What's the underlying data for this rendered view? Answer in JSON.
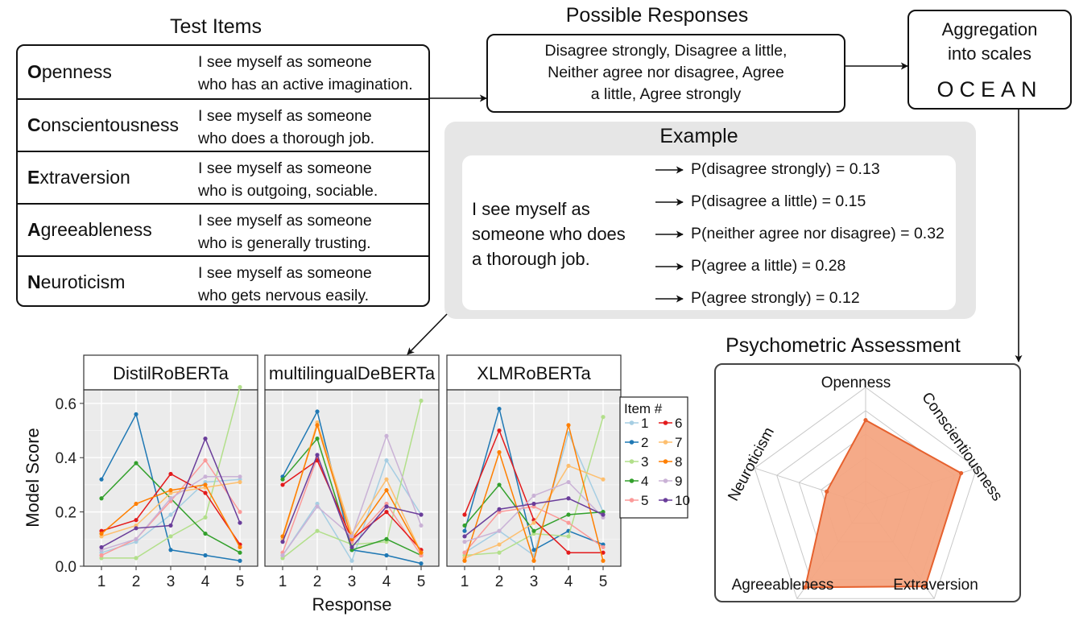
{
  "test_items": {
    "title": "Test Items",
    "rows": [
      {
        "initial": "O",
        "rest": "penness",
        "statement_line1": "I see myself as someone",
        "statement_line2": "who has an active imagination."
      },
      {
        "initial": "C",
        "rest": "onscientousness",
        "statement_line1": "I see myself as someone",
        "statement_line2": "who does a thorough job."
      },
      {
        "initial": "E",
        "rest": "xtraversion",
        "statement_line1": "I see myself as someone",
        "statement_line2": "who is outgoing, sociable."
      },
      {
        "initial": "A",
        "rest": "greeableness",
        "statement_line1": "I see myself as someone",
        "statement_line2": "who is generally trusting."
      },
      {
        "initial": "N",
        "rest": "euroticism",
        "statement_line1": "I see myself as someone",
        "statement_line2": "who gets nervous easily."
      }
    ]
  },
  "responses": {
    "title": "Possible Responses",
    "line1": "Disagree strongly, Disagree a little,",
    "line2": "Neither agree nor disagree, Agree",
    "line3": "a little, Agree strongly"
  },
  "aggregation": {
    "line1": "Aggregation",
    "line2": "into scales",
    "ocean": "OCEAN"
  },
  "example": {
    "title": "Example",
    "stmt_line1": "I see myself as",
    "stmt_line2": "someone who does",
    "stmt_line3": "a thorough job.",
    "probabilities": [
      "P(disagree strongly) = 0.13",
      "P(disagree a little) = 0.15",
      "P(neither agree nor disagree) = 0.32",
      "P(agree a little) = 0.28",
      "P(agree strongly) = 0.12"
    ]
  },
  "psychometric": {
    "title": "Psychometric Assessment",
    "labels": [
      "Openness",
      "Conscientiousness",
      "Extraversion",
      "Agreeableness",
      "Neuroticism"
    ],
    "values": [
      0.72,
      0.86,
      0.87,
      0.88,
      0.35
    ],
    "fill_color": "#f4a582",
    "line_color": "#e6612e"
  },
  "chart_data": {
    "type": "line",
    "panels": [
      "DistilRoBERTa",
      "multilingualDeBERTa",
      "XLMRoBERTa"
    ],
    "xlabel": "Response",
    "ylabel": "Model Score",
    "x": [
      1,
      2,
      3,
      4,
      5
    ],
    "ylim": [
      0,
      0.65
    ],
    "yticks": [
      "0.0",
      "0.2",
      "0.4",
      "0.6"
    ],
    "legend_title": "Item #",
    "legend_position": "right",
    "grid": true,
    "series": [
      {
        "name": "1",
        "color": "#a6cee3",
        "values": [
          [
            0.05,
            0.09,
            0.19,
            0.31,
            0.32
          ],
          [
            0.04,
            0.23,
            0.02,
            0.39,
            0.19
          ],
          [
            0.05,
            0.13,
            0.04,
            0.49,
            0.2
          ]
        ]
      },
      {
        "name": "2",
        "color": "#1f78b4",
        "values": [
          [
            0.32,
            0.56,
            0.06,
            0.04,
            0.02
          ],
          [
            0.33,
            0.57,
            0.06,
            0.04,
            0.01
          ],
          [
            0.13,
            0.58,
            0.06,
            0.13,
            0.08
          ]
        ]
      },
      {
        "name": "3",
        "color": "#b2df8a",
        "values": [
          [
            0.03,
            0.03,
            0.11,
            0.18,
            0.66
          ],
          [
            0.03,
            0.13,
            0.08,
            0.09,
            0.61
          ],
          [
            0.04,
            0.05,
            0.12,
            0.11,
            0.55
          ]
        ]
      },
      {
        "name": "4",
        "color": "#33a02c",
        "values": [
          [
            0.25,
            0.38,
            0.25,
            0.12,
            0.05
          ],
          [
            0.32,
            0.47,
            0.06,
            0.1,
            0.04
          ],
          [
            0.15,
            0.3,
            0.13,
            0.19,
            0.2
          ]
        ]
      },
      {
        "name": "5",
        "color": "#fb9a99",
        "values": [
          [
            0.04,
            0.1,
            0.24,
            0.39,
            0.2
          ],
          [
            0.05,
            0.4,
            0.09,
            0.23,
            0.04
          ],
          [
            0.05,
            0.2,
            0.22,
            0.16,
            0.07
          ]
        ]
      },
      {
        "name": "6",
        "color": "#e31a1c",
        "values": [
          [
            0.13,
            0.17,
            0.34,
            0.27,
            0.08
          ],
          [
            0.3,
            0.39,
            0.1,
            0.2,
            0.06
          ],
          [
            0.19,
            0.5,
            0.17,
            0.05,
            0.05
          ]
        ]
      },
      {
        "name": "7",
        "color": "#fdbf6f",
        "values": [
          [
            0.11,
            0.15,
            0.27,
            0.29,
            0.31
          ],
          [
            0.1,
            0.53,
            0.12,
            0.32,
            0.05
          ],
          [
            0.03,
            0.08,
            0.16,
            0.37,
            0.32
          ]
        ]
      },
      {
        "name": "8",
        "color": "#ff7f00",
        "values": [
          [
            0.12,
            0.23,
            0.28,
            0.3,
            0.07
          ],
          [
            0.11,
            0.52,
            0.1,
            0.28,
            0.05
          ],
          [
            0.02,
            0.42,
            0.02,
            0.52,
            0.02
          ]
        ]
      },
      {
        "name": "9",
        "color": "#cab2d6",
        "values": [
          [
            0.06,
            0.1,
            0.25,
            0.33,
            0.33
          ],
          [
            0.04,
            0.22,
            0.11,
            0.48,
            0.15
          ],
          [
            0.09,
            0.13,
            0.26,
            0.31,
            0.18
          ]
        ]
      },
      {
        "name": "10",
        "color": "#6a3d9a",
        "values": [
          [
            0.07,
            0.14,
            0.15,
            0.47,
            0.16
          ],
          [
            0.09,
            0.41,
            0.07,
            0.22,
            0.19
          ],
          [
            0.11,
            0.21,
            0.23,
            0.25,
            0.19
          ]
        ]
      }
    ]
  }
}
